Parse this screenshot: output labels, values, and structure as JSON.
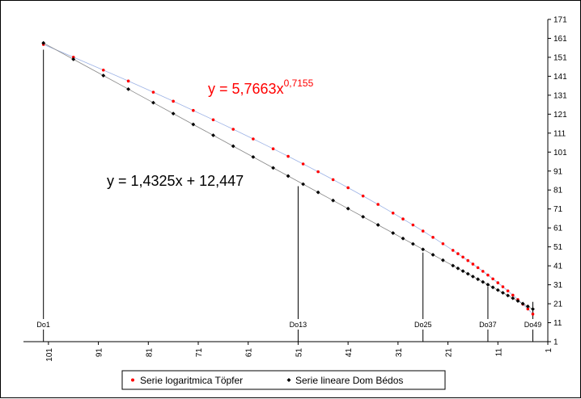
{
  "chart_data": {
    "type": "scatter",
    "x_axis": {
      "min": 1,
      "max": 106,
      "reversed": true,
      "ticks": [
        101,
        91,
        81,
        71,
        61,
        51,
        41,
        31,
        21,
        11,
        1
      ]
    },
    "y_axis": {
      "min": 1,
      "max": 171,
      "position": "right",
      "ticks": [
        1,
        11,
        21,
        31,
        41,
        51,
        61,
        71,
        81,
        91,
        101,
        111,
        121,
        131,
        141,
        151,
        161,
        171
      ]
    },
    "grid": false,
    "legend_position": "bottom",
    "series": [
      {
        "name": "Serie logaritmica Töpfer",
        "color": "#ff0000",
        "marker": "circle",
        "formula": {
          "type": "power",
          "a": 5.7663,
          "b": 0.7155
        },
        "x_values": [
          102,
          96,
          90,
          85,
          80,
          76,
          72,
          68,
          64,
          60,
          56,
          53,
          50,
          47,
          44,
          41,
          38,
          35,
          32,
          30,
          28,
          26,
          24,
          22,
          20,
          19,
          18,
          17,
          16,
          15,
          14,
          13,
          12,
          11,
          10,
          9,
          8,
          7,
          6,
          5,
          4
        ]
      },
      {
        "name": "Serie lineare Dom Bédos",
        "color": "#000000",
        "marker": "diamond",
        "formula": {
          "type": "linear",
          "m": 1.4325,
          "q": 12.447
        },
        "x_values": [
          102,
          96,
          90,
          85,
          80,
          76,
          72,
          68,
          64,
          60,
          56,
          53,
          50,
          47,
          44,
          41,
          38,
          35,
          32,
          30,
          28,
          26,
          24,
          22,
          20,
          19,
          18,
          17,
          16,
          15,
          14,
          13,
          12,
          11,
          10,
          9,
          8,
          7,
          6,
          5,
          4
        ]
      }
    ],
    "annotations": [
      {
        "label": "Do1",
        "x": 102,
        "y": 155
      },
      {
        "label": "Do13",
        "x": 51,
        "y": 83
      },
      {
        "label": "Do25",
        "x": 26,
        "y": 48
      },
      {
        "label": "Do37",
        "x": 13,
        "y": 30
      },
      {
        "label": "Do49",
        "x": 4,
        "y": 22
      }
    ],
    "equations": [
      {
        "text": "y = 5,7663x",
        "exponent": "0,7155",
        "color": "#ff0000"
      },
      {
        "text": "y = 1,4325x + 12,447",
        "exponent": "",
        "color": "#000000"
      }
    ]
  }
}
